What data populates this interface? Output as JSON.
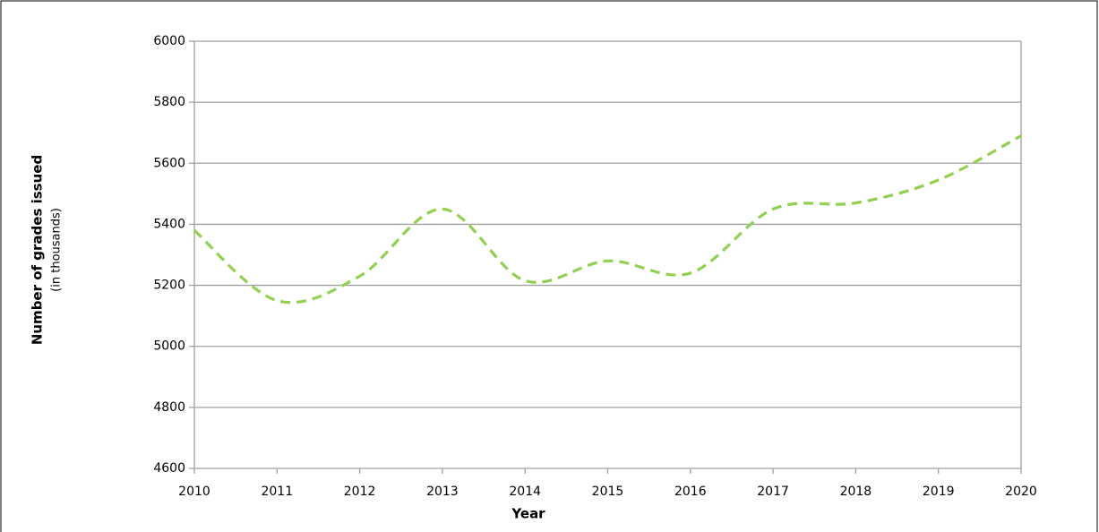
{
  "chart_data": {
    "type": "line",
    "ylabel": "Number of grades issued",
    "ylabel_note": "(in thousands)",
    "xlabel": "Year",
    "x": [
      2010,
      2011,
      2012,
      2013,
      2014,
      2015,
      2016,
      2017,
      2018,
      2019,
      2020
    ],
    "series": [
      {
        "color": "#92d050",
        "values": [
          5380,
          5150,
          5230,
          5450,
          5215,
          5280,
          5240,
          5450,
          5470,
          5545,
          5690
        ]
      }
    ],
    "xlim": [
      2010,
      2020
    ],
    "xticks": [
      2010,
      2011,
      2012,
      2013,
      2014,
      2015,
      2016,
      2017,
      2018,
      2019,
      2020
    ],
    "ylim": [
      4600,
      6000
    ],
    "yticks": [
      4600,
      4800,
      5000,
      5200,
      5400,
      5600,
      5800,
      6000
    ],
    "grid": true,
    "smooth": true,
    "dashed": true
  }
}
